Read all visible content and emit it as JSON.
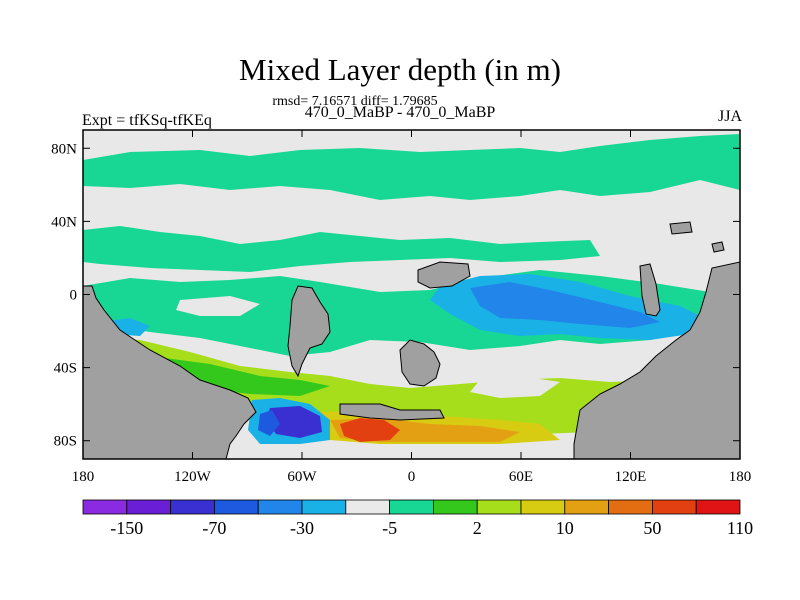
{
  "chart_data": {
    "type": "heatmap",
    "title": "Mixed Layer depth (in m)",
    "rmsd_line": "rmsd= 7.16571 diff= 1.79685",
    "subtitle": "470_0_MaBP - 470_0_MaBP",
    "left_label": "Expt = tfKSq-tfKEq",
    "right_label": "JJA",
    "x_ticks": [
      "180",
      "120W",
      "60W",
      "0",
      "60E",
      "120E",
      "180"
    ],
    "x_tick_values": [
      -180,
      -120,
      -60,
      0,
      60,
      120,
      180
    ],
    "y_ticks": [
      "80N",
      "40N",
      "0",
      "40S",
      "80S"
    ],
    "y_tick_values": [
      80,
      40,
      0,
      -40,
      -80
    ],
    "xlim": [
      -180,
      180
    ],
    "ylim": [
      -90,
      90
    ],
    "colorbar": {
      "colors": [
        "#8a2be2",
        "#6a1fd6",
        "#3a2fd0",
        "#1d5ae0",
        "#2185ea",
        "#1ab2e6",
        "#eaeaea",
        "#18d694",
        "#35c81c",
        "#a6de1c",
        "#d8cc12",
        "#e3a012",
        "#e36e12",
        "#e34012",
        "#e01414"
      ],
      "labels": [
        "-150",
        "-70",
        "-30",
        "-5",
        "2",
        "10",
        "50",
        "110"
      ],
      "label_positions": [
        1,
        3,
        5,
        7,
        9,
        11,
        13,
        15
      ]
    },
    "colors": {
      "land": "#a0a0a0",
      "neutral": "#e8e8e8"
    }
  }
}
